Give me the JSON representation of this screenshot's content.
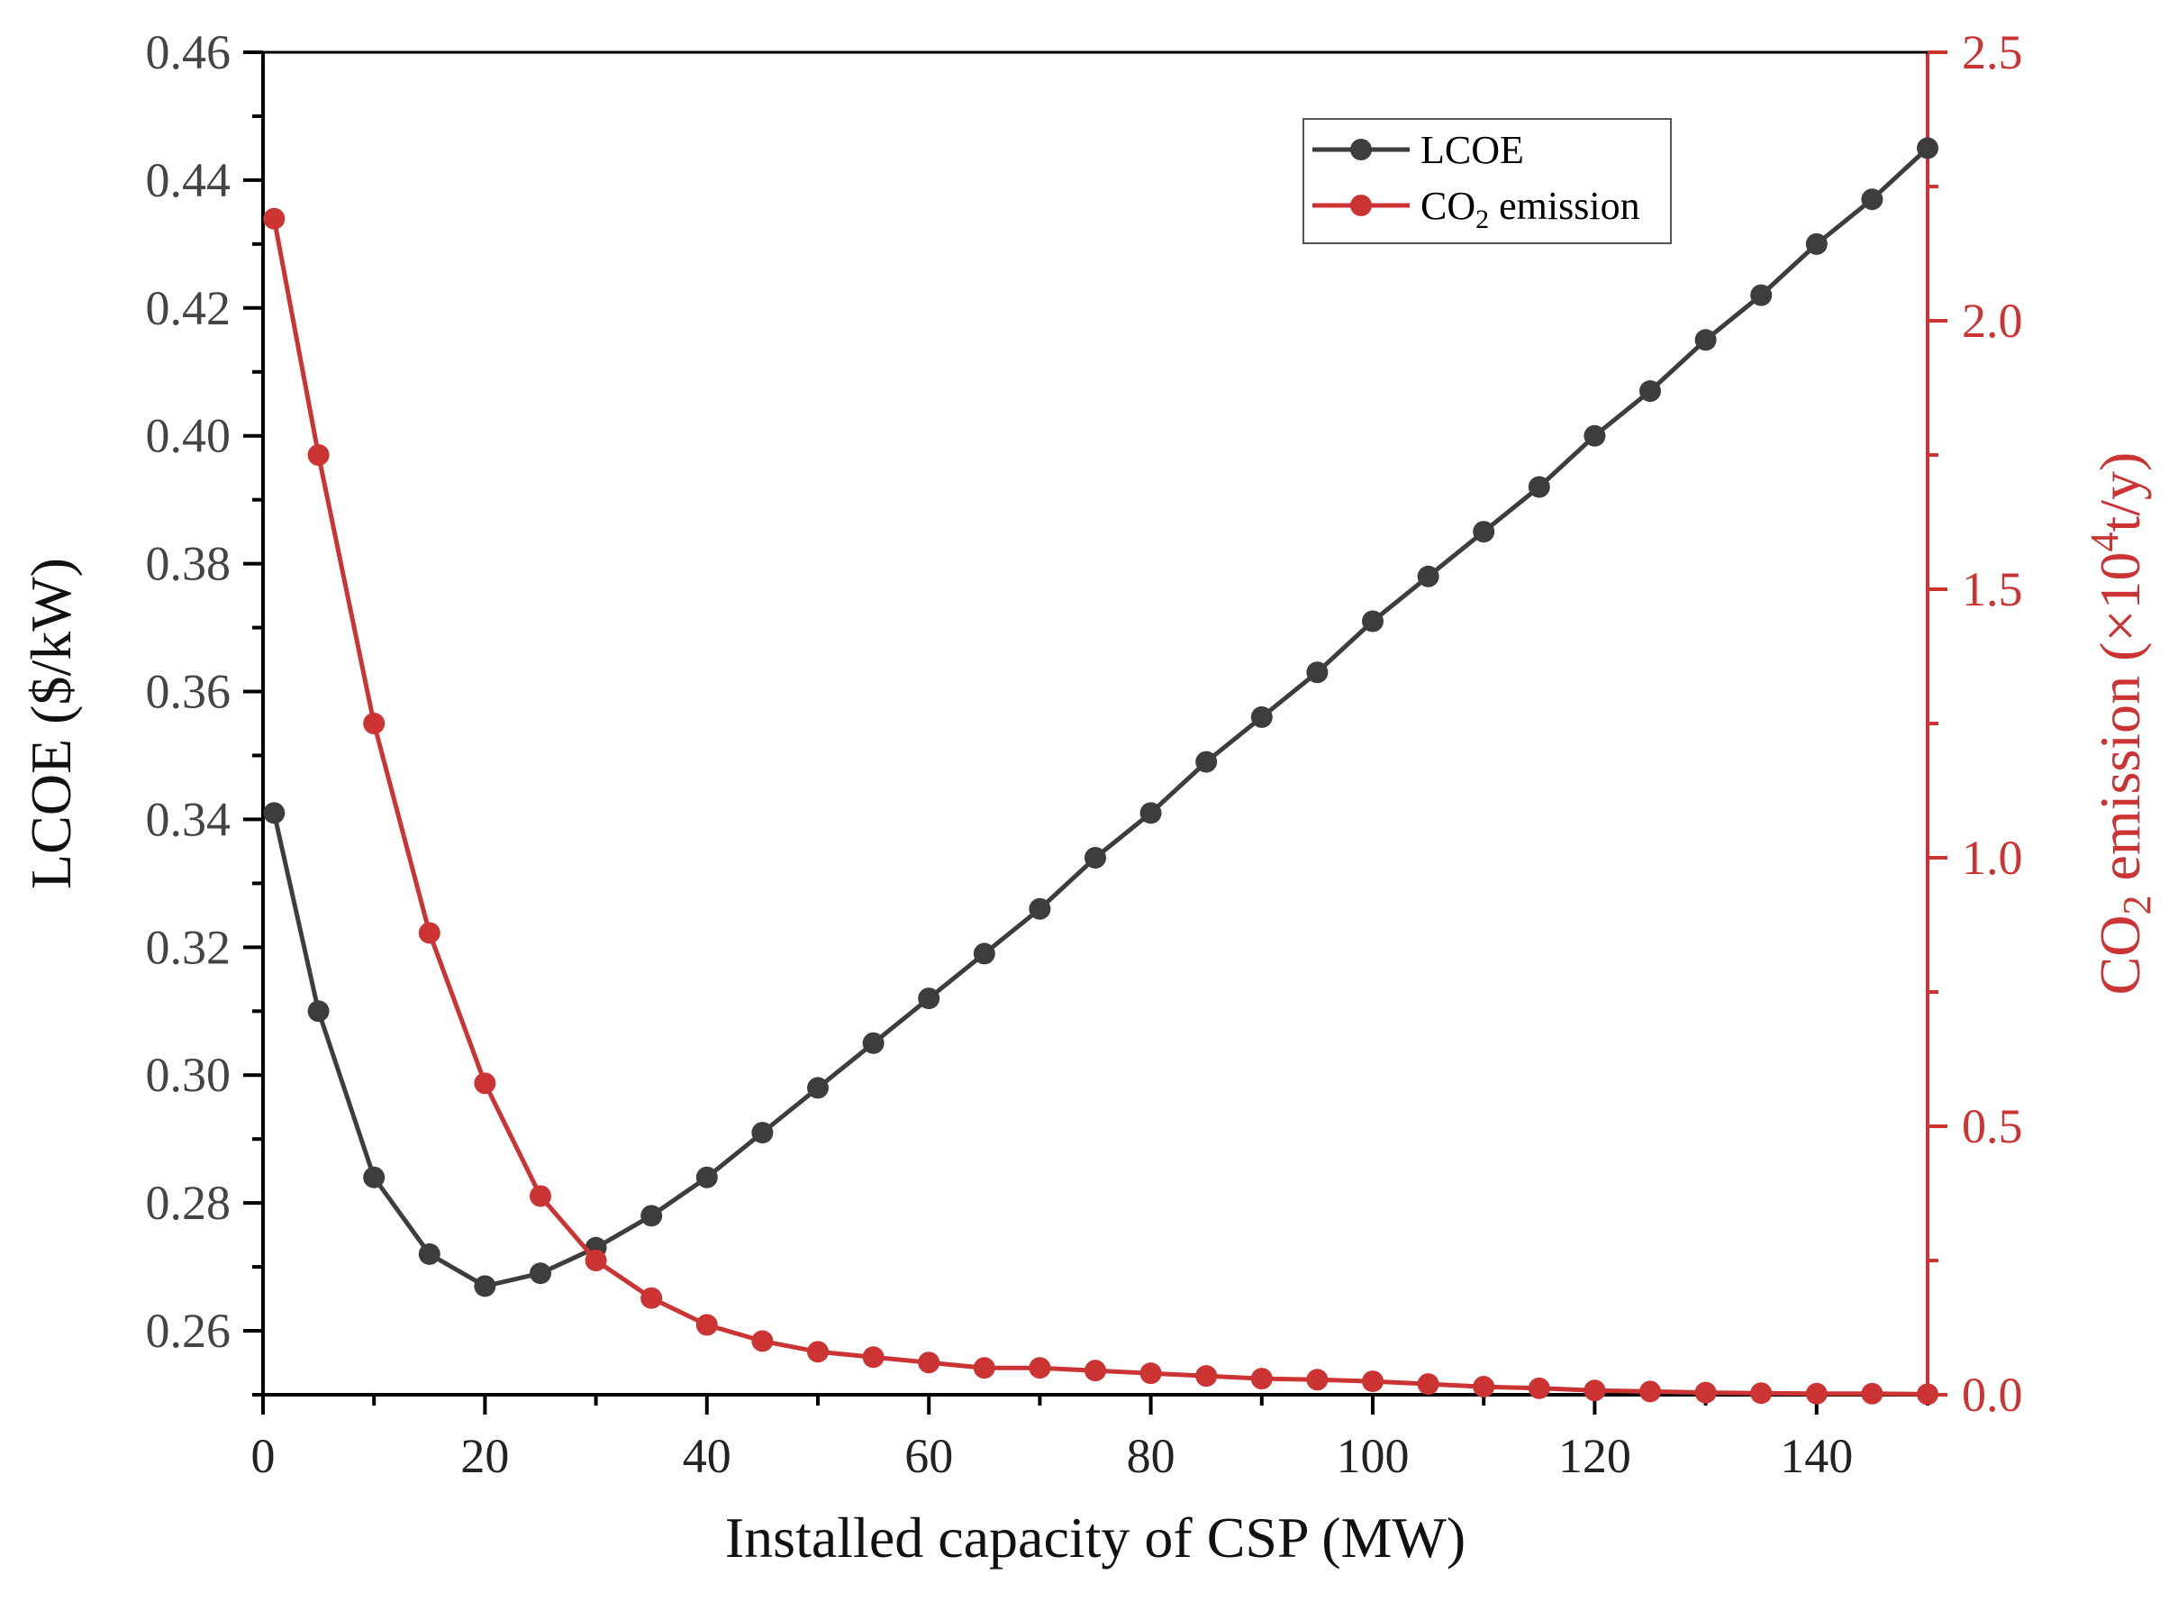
{
  "colors": {
    "lcoe": "#3d3d3d",
    "co2": "#cc3333",
    "axis": "#000000",
    "co2_axis": "#cc3333"
  },
  "chart_data": {
    "type": "line",
    "xlabel": "Installed capacity of CSP (MW)",
    "ylabel_left": "LCOE ($/kW)",
    "ylabel_right": {
      "prefix": "CO",
      "sub": "2",
      "middle": " emission (×10",
      "sup": "4",
      "suffix": "t/y)"
    },
    "xlim": [
      0,
      150
    ],
    "xticks": [
      0,
      20,
      40,
      60,
      80,
      100,
      120,
      140
    ],
    "ylim_left": [
      0.25,
      0.46
    ],
    "yticks_left": [
      "0.26",
      "0.28",
      "0.30",
      "0.32",
      "0.34",
      "0.36",
      "0.38",
      "0.40",
      "0.42",
      "0.44",
      "0.46"
    ],
    "ylim_right": [
      0.0,
      2.5
    ],
    "yticks_right": [
      "0.0",
      "0.5",
      "1.0",
      "1.5",
      "2.0",
      "2.5"
    ],
    "legend_position": "top-right",
    "x": [
      1,
      5,
      10,
      15,
      20,
      25,
      30,
      35,
      40,
      45,
      50,
      55,
      60,
      65,
      70,
      75,
      80,
      85,
      90,
      95,
      100,
      105,
      110,
      115,
      120,
      125,
      130,
      135,
      140,
      145,
      150
    ],
    "series": [
      {
        "name": "LCOE",
        "axis": "left",
        "values": [
          0.341,
          0.31,
          0.284,
          0.272,
          0.267,
          0.269,
          0.273,
          0.278,
          0.284,
          0.291,
          0.298,
          0.305,
          0.312,
          0.319,
          0.326,
          0.334,
          0.341,
          0.349,
          0.356,
          0.363,
          0.371,
          0.378,
          0.385,
          0.392,
          0.4,
          0.407,
          0.415,
          0.422,
          0.43,
          0.437,
          0.445
        ]
      },
      {
        "name_parts": {
          "prefix": "CO",
          "sub": "2",
          "suffix": " emission"
        },
        "axis": "right",
        "values": [
          2.19,
          1.75,
          1.25,
          0.86,
          0.58,
          0.37,
          0.25,
          0.18,
          0.13,
          0.1,
          0.08,
          0.07,
          0.06,
          0.05,
          0.05,
          0.045,
          0.04,
          0.035,
          0.03,
          0.028,
          0.025,
          0.02,
          0.015,
          0.012,
          0.008,
          0.006,
          0.004,
          0.003,
          0.002,
          0.002,
          0.001
        ]
      }
    ]
  }
}
